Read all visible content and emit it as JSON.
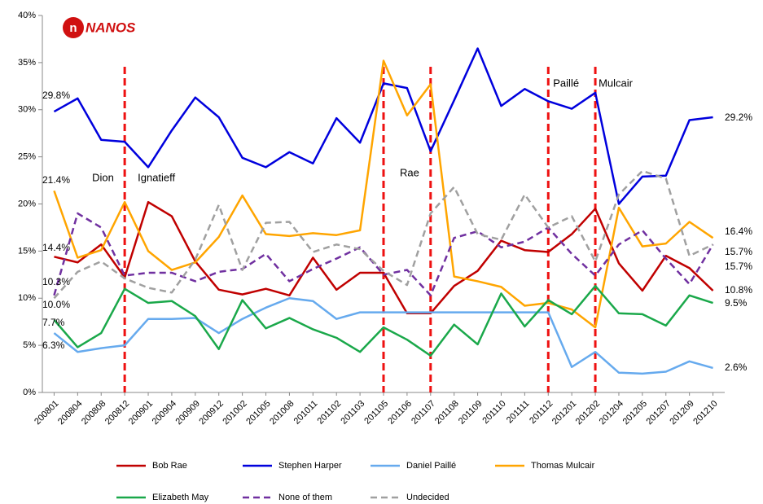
{
  "chart_data": {
    "type": "line",
    "logo": "NANOS",
    "categories": [
      "200801",
      "200804",
      "200808",
      "200812",
      "200901",
      "200904",
      "200909",
      "200912",
      "201002",
      "201005",
      "201008",
      "201011",
      "201102",
      "201103",
      "201105",
      "201106",
      "201107",
      "201108",
      "201109",
      "201110",
      "201111",
      "201112",
      "201201",
      "201202",
      "201204",
      "201205",
      "201207",
      "201209",
      "201210"
    ],
    "series": [
      {
        "name": "Bob Rae",
        "color": "#c00000",
        "dashed": false,
        "values": [
          14.4,
          13.8,
          15.7,
          12.2,
          20.2,
          18.7,
          13.9,
          10.9,
          10.4,
          11,
          10.3,
          14.3,
          10.9,
          12.7,
          12.7,
          8.4,
          8.4,
          11.3,
          12.9,
          16.1,
          15.1,
          14.9,
          16.8,
          19.5,
          13.7,
          10.8,
          14.5,
          13.2,
          10.8
        ],
        "value_labels": [
          "14.4%",
          null,
          null,
          null,
          null,
          null,
          null,
          null,
          null,
          null,
          null,
          null,
          null,
          null,
          null,
          null,
          null,
          null,
          null,
          null,
          null,
          null,
          null,
          null,
          null,
          null,
          null,
          null,
          "10.8%"
        ]
      },
      {
        "name": "Stephen Harper",
        "color": "#0000dd",
        "dashed": false,
        "values": [
          29.8,
          31.2,
          26.8,
          26.6,
          23.9,
          27.8,
          31.3,
          29.2,
          24.9,
          23.9,
          25.5,
          24.3,
          29.1,
          26.5,
          32.8,
          32.3,
          25.6,
          31,
          36.5,
          30.4,
          32.2,
          30.9,
          30.1,
          31.8,
          20,
          22.9,
          23,
          28.9,
          29.2
        ],
        "value_labels": [
          "29.8%",
          null,
          null,
          null,
          null,
          null,
          null,
          null,
          null,
          null,
          null,
          null,
          null,
          null,
          null,
          null,
          null,
          null,
          null,
          null,
          null,
          null,
          null,
          null,
          null,
          null,
          null,
          null,
          "29.2%"
        ]
      },
      {
        "name": "Daniel Paillé",
        "color": "#66aaee",
        "dashed": false,
        "values": [
          6.3,
          4.3,
          4.7,
          5,
          7.8,
          7.8,
          7.9,
          6.3,
          7.8,
          9,
          10,
          9.7,
          7.8,
          8.5,
          8.5,
          8.5,
          8.5,
          8.5,
          8.5,
          8.5,
          8.5,
          8.5,
          2.7,
          4.3,
          2.1,
          2,
          2.2,
          3.3,
          2.6
        ],
        "value_labels": [
          "6.3%",
          null,
          null,
          null,
          null,
          null,
          null,
          null,
          null,
          null,
          null,
          null,
          null,
          null,
          null,
          null,
          null,
          null,
          null,
          null,
          null,
          null,
          null,
          null,
          null,
          null,
          null,
          null,
          "2.6%"
        ]
      },
      {
        "name": "Thomas Mulcair",
        "color": "#ffa500",
        "dashed": false,
        "values": [
          21.4,
          14.3,
          15.1,
          20.2,
          15,
          13,
          13.8,
          16.5,
          20.9,
          16.8,
          16.6,
          16.9,
          16.7,
          17.2,
          35.2,
          29.4,
          32.7,
          12.3,
          11.8,
          11.2,
          9.2,
          9.5,
          8.8,
          6.9,
          19.6,
          15.5,
          15.8,
          18.1,
          16.4
        ],
        "value_labels": [
          "21.4%",
          null,
          null,
          null,
          null,
          null,
          null,
          null,
          null,
          null,
          null,
          null,
          null,
          null,
          null,
          null,
          null,
          null,
          null,
          null,
          null,
          null,
          null,
          null,
          null,
          null,
          null,
          null,
          "16.4%"
        ]
      },
      {
        "name": "Elizabeth May",
        "color": "#1aa84a",
        "dashed": false,
        "values": [
          7.7,
          4.8,
          6.3,
          11,
          9.5,
          9.7,
          8.1,
          4.6,
          9.8,
          6.8,
          7.9,
          6.7,
          5.8,
          4.3,
          6.9,
          5.6,
          3.9,
          7.2,
          5.1,
          10.5,
          7,
          9.8,
          8.3,
          11.3,
          8.4,
          8.3,
          7.1,
          10.3,
          9.5
        ],
        "value_labels": [
          "7.7%",
          null,
          null,
          null,
          null,
          null,
          null,
          null,
          null,
          null,
          null,
          null,
          null,
          null,
          null,
          null,
          null,
          null,
          null,
          null,
          null,
          null,
          null,
          null,
          null,
          null,
          null,
          null,
          "9.5%"
        ]
      },
      {
        "name": "None of them",
        "color": "#7030a0",
        "dashed": true,
        "values": [
          10.3,
          19,
          17.5,
          12.4,
          12.7,
          12.7,
          11.8,
          12.8,
          13.1,
          14.7,
          11.8,
          13.1,
          14.2,
          15.4,
          12.5,
          13,
          10.3,
          16.4,
          17.1,
          15.4,
          16,
          17.5,
          14.7,
          12.4,
          15.7,
          17.2,
          14.2,
          11.5,
          15.7
        ],
        "value_labels": [
          "10.3%",
          null,
          null,
          null,
          null,
          null,
          null,
          null,
          null,
          null,
          null,
          null,
          null,
          null,
          null,
          null,
          null,
          null,
          null,
          null,
          null,
          null,
          null,
          null,
          null,
          null,
          null,
          null,
          "15.7%"
        ]
      },
      {
        "name": "Undecided",
        "color": "#a0a0a0",
        "dashed": true,
        "values": [
          10,
          12.8,
          13.9,
          12.1,
          11.1,
          10.6,
          14.1,
          19.9,
          13,
          18,
          18.1,
          14.9,
          15.7,
          15.2,
          12.9,
          11.4,
          19,
          21.8,
          16.8,
          16.2,
          21,
          17.5,
          18.7,
          13.9,
          21,
          23.5,
          22.7,
          14.5,
          15.7
        ],
        "value_labels": [
          "10.0%",
          null,
          null,
          null,
          null,
          null,
          null,
          null,
          null,
          null,
          null,
          null,
          null,
          null,
          null,
          null,
          null,
          null,
          null,
          null,
          null,
          null,
          null,
          null,
          null,
          null,
          null,
          null,
          "15.7%"
        ]
      }
    ],
    "event_lines": [
      "200812",
      "201105",
      "201107",
      "201112",
      "201202"
    ],
    "event_color": "#ee1111",
    "annotations": [
      {
        "text": "Dion",
        "category": "200812"
      },
      {
        "text": "Ignatieff",
        "category": "200812"
      },
      {
        "text": "Rae",
        "category": "201105"
      },
      {
        "text": "Paillé",
        "category": "201112"
      },
      {
        "text": "Mulcair",
        "category": "201202"
      }
    ],
    "ylim": [
      0,
      40
    ],
    "yticks": [
      {
        "value": 0,
        "label": "0%"
      },
      {
        "value": 5,
        "label": "5%"
      },
      {
        "value": 10,
        "label": "10%"
      },
      {
        "value": 15,
        "label": "15%"
      },
      {
        "value": 20,
        "label": "20%"
      },
      {
        "value": 25,
        "label": "25%"
      },
      {
        "value": 30,
        "label": "30%"
      },
      {
        "value": 35,
        "label": "35%"
      },
      {
        "value": 40,
        "label": "40%"
      }
    ],
    "grid": false,
    "legend": "bottom"
  }
}
